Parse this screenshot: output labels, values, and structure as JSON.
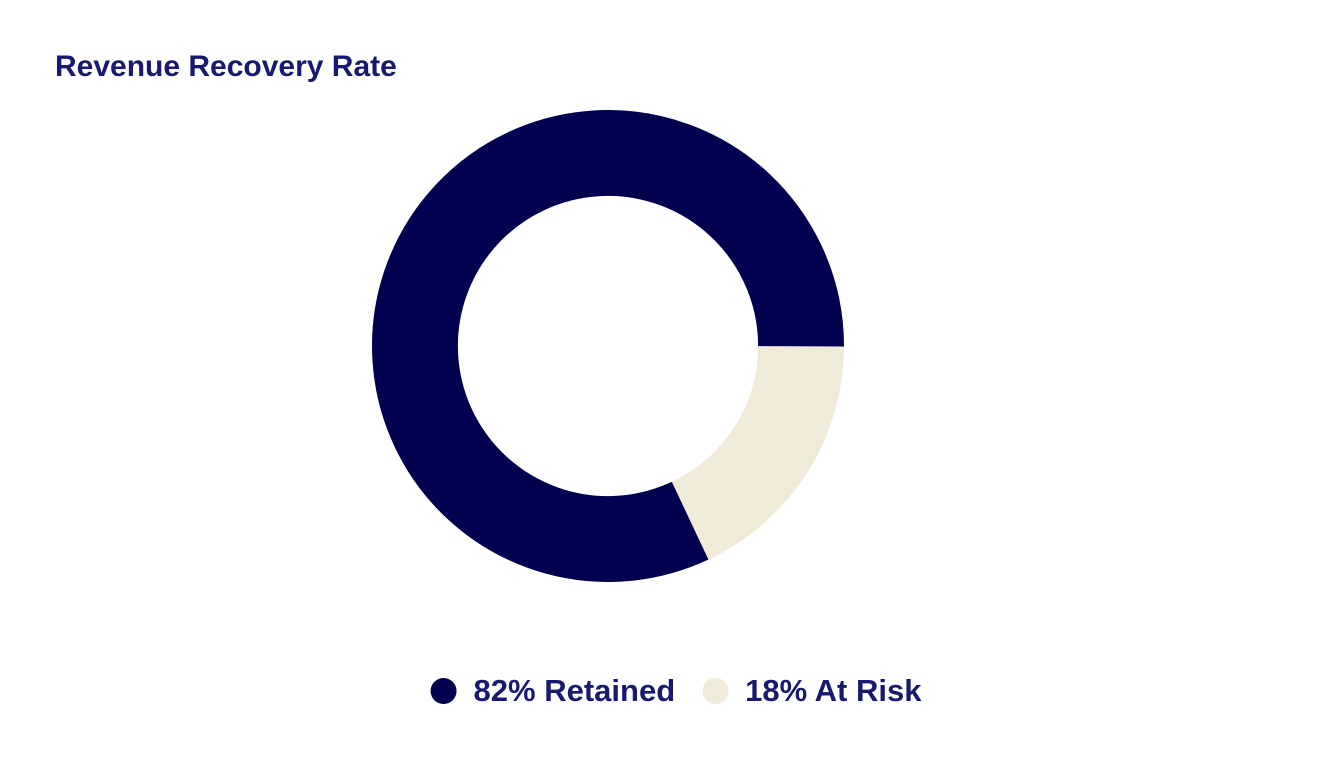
{
  "theme": {
    "background": "#ffffff",
    "text_color": "#191970"
  },
  "header": {
    "title": "Revenue Recovery Rate"
  },
  "chart_data": {
    "type": "pie",
    "subtype": "donut",
    "title": "Revenue Recovery Rate",
    "segments": [
      {
        "name": "Retained",
        "value": 82,
        "unit": "%",
        "color": "#020150",
        "legend_label": "82% Retained"
      },
      {
        "name": "At Risk",
        "value": 18,
        "unit": "%",
        "color": "#f0ead9",
        "legend_label": "18% At Risk"
      }
    ],
    "total": 100,
    "rotation_deg": 64.8,
    "inner_radius_ratio": 0.636,
    "legend_position": "bottom",
    "data_labels": "none",
    "center_label": ""
  }
}
